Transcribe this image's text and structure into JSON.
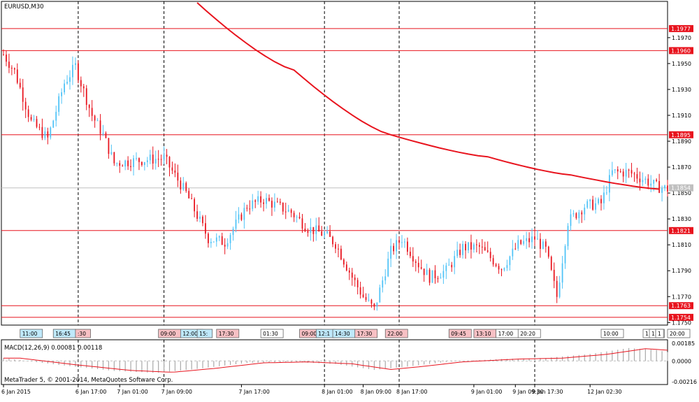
{
  "window": {
    "symbol_title": "EURUSD,M30",
    "copyright": "MetaTrader 5, © 2001-2014, MetaQuotes Software Corp."
  },
  "colors": {
    "bull": "#4fc3f7",
    "bear": "#e8141e",
    "ma": "#e8141e",
    "level": "#e8141e",
    "current_price_line": "#c0c0c0",
    "macd_hist": "#a9a9a9",
    "macd_signal": "#e8141e",
    "grid": "#000000"
  },
  "indicators": {
    "macd_label": "MACD(12,26,9) 0.00081 0.00118",
    "macd_axis": [
      "0.00185",
      "0.0000",
      "-0.00216"
    ]
  },
  "chart_data": {
    "type": "candlestick",
    "symbol": "EURUSD",
    "timeframe": "M30",
    "price_ticks": [
      1.197,
      1.195,
      1.193,
      1.191,
      1.189,
      1.187,
      1.185,
      1.183,
      1.181,
      1.179,
      1.177,
      1.175
    ],
    "horizontal_levels": [
      1.1977,
      1.196,
      1.1895,
      1.1821,
      1.1763,
      1.1754
    ],
    "current_price": 1.1854,
    "time_labels": [
      "6 Jan 2015",
      "6 Jan 17:00",
      "7 Jan 01:00",
      "7 Jan 09:00",
      "7 Jan 17:00",
      "8 Jan 01:00",
      "8 Jan 09:00",
      "8 Jan 17:00",
      "9 Jan 01:00",
      "9 Jan 09:30",
      "9 Jan 17:30",
      "12 Jan 02:30"
    ],
    "event_markers": [
      {
        "label": "11:00",
        "kind": "blue"
      },
      {
        "label": "16:45",
        "kind": "blue"
      },
      {
        "label": ":30",
        "kind": "red"
      },
      {
        "label": "09:00",
        "kind": "red"
      },
      {
        "label": "12:00",
        "kind": "blue"
      },
      {
        "label": "15:",
        "kind": "blue"
      },
      {
        "label": "17:30",
        "kind": "red"
      },
      {
        "label": "01:30",
        "kind": "white"
      },
      {
        "label": "09:00",
        "kind": "red"
      },
      {
        "label": "12:1",
        "kind": "blue"
      },
      {
        "label": "14:30",
        "kind": "blue"
      },
      {
        "label": "17:30",
        "kind": "red"
      },
      {
        "label": "22:00",
        "kind": "red"
      },
      {
        "label": "09:45",
        "kind": "red"
      },
      {
        "label": "13:10",
        "kind": "red"
      },
      {
        "label": "17:00",
        "kind": "white"
      },
      {
        "label": "20:20",
        "kind": "white"
      },
      {
        "label": "10:00",
        "kind": "white"
      },
      {
        "label": "1",
        "kind": "white"
      },
      {
        "label": "20:00",
        "kind": "white"
      },
      {
        "label": "1",
        "kind": "white"
      },
      {
        "label": "13",
        "kind": "white"
      },
      {
        "label": "1",
        "kind": "white"
      }
    ],
    "ma_path": [
      [
        1.1997,
        70
      ],
      [
        1.1945,
        105
      ],
      [
        1.1895,
        140
      ],
      [
        1.1878,
        175
      ],
      [
        1.1864,
        205
      ],
      [
        1.1853,
        237
      ]
    ]
  }
}
